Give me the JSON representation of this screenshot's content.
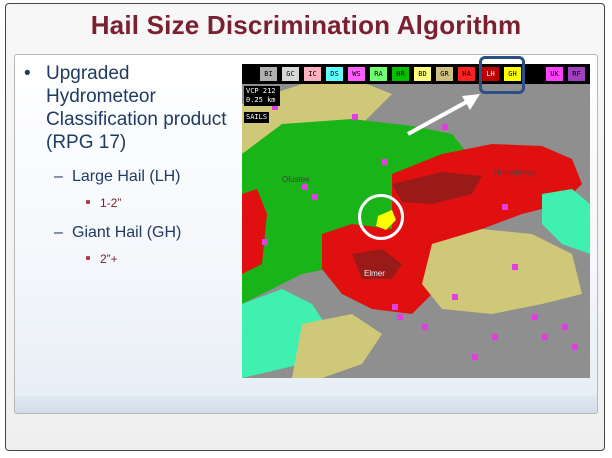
{
  "slide": {
    "title": "Hail Size Discrimination Algorithm"
  },
  "bullets": {
    "main": "Upgraded Hydrometeor Classification product (RPG 17)",
    "sub1": "Large Hail (LH)",
    "sub1_detail": "1-2”",
    "sub2": "Giant Hail (GH)",
    "sub2_detail": "2”+"
  },
  "radar": {
    "legend": [
      {
        "label": "BI",
        "color": "#b0b0b0"
      },
      {
        "label": "GC",
        "color": "#d8d8d8"
      },
      {
        "label": "IC",
        "color": "#ffb0c0"
      },
      {
        "label": "DS",
        "color": "#60ffff"
      },
      {
        "label": "WS",
        "color": "#ff60ff"
      },
      {
        "label": "RA",
        "color": "#70ff70"
      },
      {
        "label": "HR",
        "color": "#00c000"
      },
      {
        "label": "BD",
        "color": "#ffff80"
      },
      {
        "label": "GR",
        "color": "#d0c080"
      },
      {
        "label": "HA",
        "color": "#ff2020"
      },
      {
        "label": "LH",
        "color": "#c00000"
      },
      {
        "label": "GH",
        "color": "#ffff00"
      },
      {
        "label": "UK",
        "color": "#ff40ff"
      },
      {
        "label": "RF",
        "color": "#a040c0"
      }
    ],
    "vcp_line1": "VCP 212",
    "vcp_line2": "0.25 km",
    "sails": "SAILS",
    "places": {
      "a": "Olustee",
      "b": "Humphreys",
      "c": "Elmer"
    },
    "colors": {
      "green": "#18b418",
      "red": "#e01010",
      "darkred": "#9a1a1a",
      "tan": "#cfc878",
      "gray": "#8f8f8f",
      "aqua": "#40f0b0",
      "magenta": "#e040e0"
    }
  }
}
